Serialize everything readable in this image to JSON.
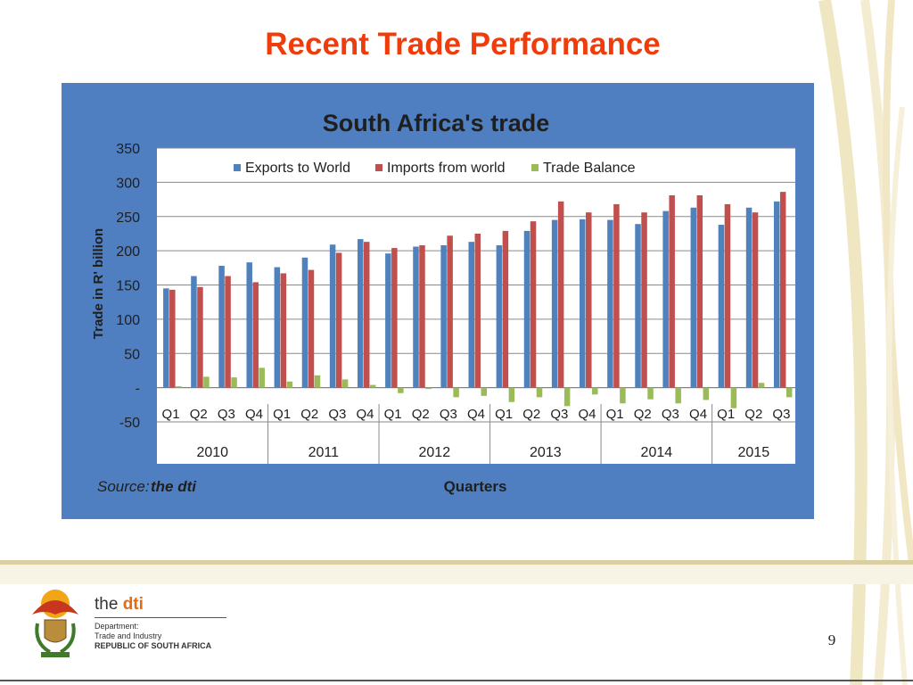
{
  "slide": {
    "title": "Recent Trade Performance",
    "page_number": "9"
  },
  "source": {
    "label": "Source:",
    "name": "the dti"
  },
  "footer": {
    "org_prefix": "the ",
    "org_name": "dti",
    "line1": "Department:",
    "line2": "Trade and Industry",
    "line3": "REPUBLIC OF SOUTH AFRICA"
  },
  "colors": {
    "slide_title": "#f03c0a",
    "panel_bg": "#4f7fc0",
    "plot_bg": "#ffffff",
    "exports": "#4f81bd",
    "imports": "#c0504d",
    "balance": "#9bbb59"
  },
  "chart_data": {
    "type": "bar",
    "title": "South Africa's trade",
    "ylabel": "Trade in R' billion",
    "xlabel": "Quarters",
    "ylim": [
      -50,
      350
    ],
    "yticks": [
      -50,
      0,
      50,
      100,
      150,
      200,
      250,
      300,
      350
    ],
    "ytick_labels": [
      "-50",
      "-",
      "50",
      "100",
      "150",
      "200",
      "250",
      "300",
      "350"
    ],
    "grid": true,
    "legend_position": "top",
    "categories": [
      "Q1",
      "Q2",
      "Q3",
      "Q4",
      "Q1",
      "Q2",
      "Q3",
      "Q4",
      "Q1",
      "Q2",
      "Q3",
      "Q4",
      "Q1",
      "Q2",
      "Q3",
      "Q4",
      "Q1",
      "Q2",
      "Q3",
      "Q4",
      "Q1",
      "Q2",
      "Q3"
    ],
    "groups": [
      {
        "label": "2010",
        "count": 4
      },
      {
        "label": "2011",
        "count": 4
      },
      {
        "label": "2012",
        "count": 4
      },
      {
        "label": "2013",
        "count": 4
      },
      {
        "label": "2014",
        "count": 4
      },
      {
        "label": "2015",
        "count": 3
      }
    ],
    "series": [
      {
        "name": "Exports to World",
        "values": [
          145,
          163,
          178,
          183,
          176,
          190,
          209,
          217,
          196,
          206,
          208,
          213,
          208,
          229,
          245,
          246,
          245,
          239,
          258,
          263,
          238,
          263,
          272
        ]
      },
      {
        "name": "Imports from world",
        "values": [
          143,
          147,
          163,
          154,
          167,
          172,
          197,
          213,
          204,
          208,
          222,
          225,
          229,
          243,
          272,
          256,
          268,
          256,
          281,
          281,
          268,
          256,
          286
        ]
      },
      {
        "name": "Trade Balance",
        "values": [
          2,
          16,
          15,
          29,
          9,
          18,
          12,
          4,
          -8,
          -2,
          -14,
          -12,
          -21,
          -14,
          -27,
          -10,
          -23,
          -17,
          -23,
          -18,
          -30,
          7,
          -14
        ]
      }
    ]
  }
}
